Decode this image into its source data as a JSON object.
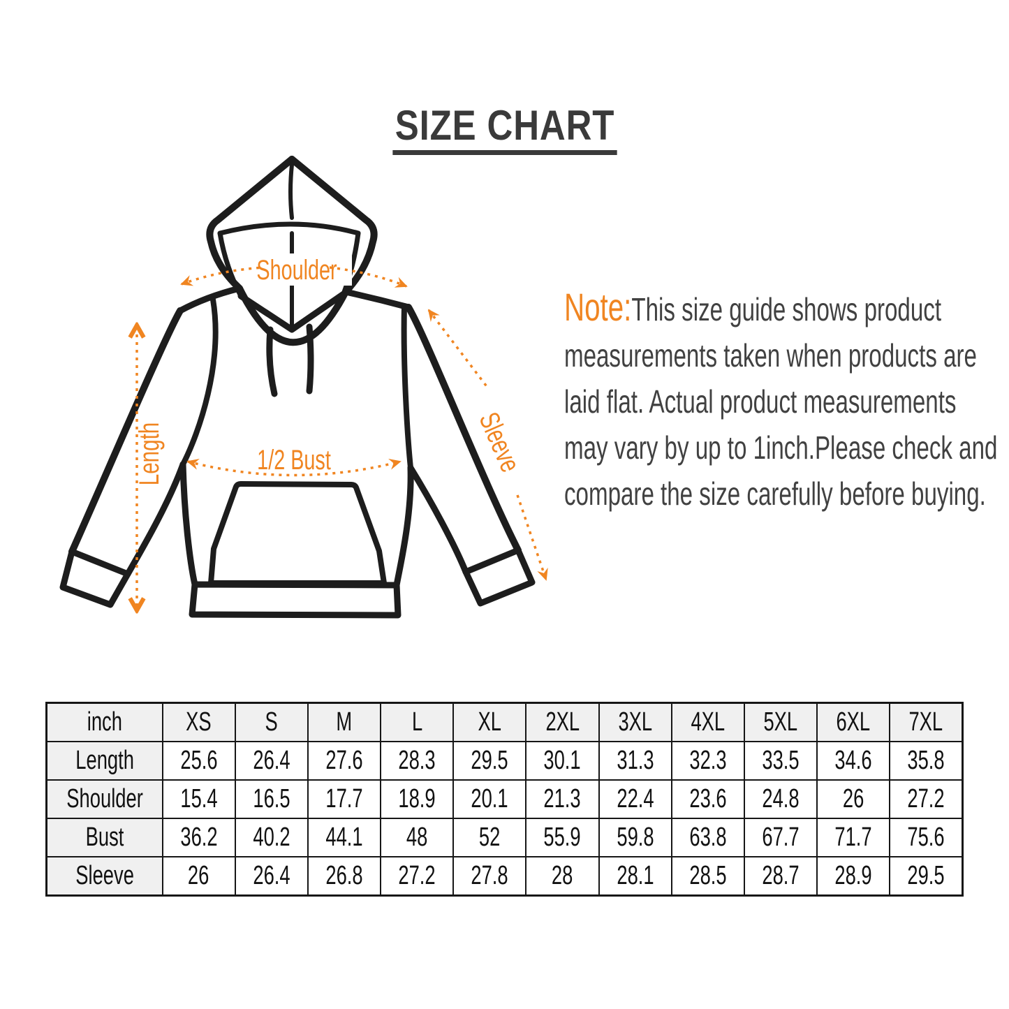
{
  "title": "SIZE CHART",
  "note": {
    "label": "Note:",
    "lines": [
      "This size guide shows product",
      "measurements taken when products are",
      "laid flat. Actual product measurements",
      "may vary by up to 1inch.Please check and",
      "compare the size carefully before buying."
    ]
  },
  "diagram": {
    "labels": {
      "shoulder": "Shoulder",
      "length": "Length",
      "bust": "1/2 Bust",
      "sleeve": "Sleeve"
    }
  },
  "table": {
    "unit_label": "inch",
    "sizes": [
      "XS",
      "S",
      "M",
      "L",
      "XL",
      "2XL",
      "3XL",
      "4XL",
      "5XL",
      "6XL",
      "7XL"
    ],
    "rows": [
      {
        "label": "Length",
        "values": [
          25.6,
          26.4,
          27.6,
          28.3,
          29.5,
          30.1,
          31.3,
          32.3,
          33.5,
          34.6,
          35.8
        ]
      },
      {
        "label": "Shoulder",
        "values": [
          15.4,
          16.5,
          17.7,
          18.9,
          20.1,
          21.3,
          22.4,
          23.6,
          24.8,
          26,
          27.2
        ]
      },
      {
        "label": "Bust",
        "values": [
          36.2,
          40.2,
          44.1,
          48,
          52,
          55.9,
          59.8,
          63.8,
          67.7,
          71.7,
          75.6
        ]
      },
      {
        "label": "Sleeve",
        "values": [
          26,
          26.4,
          26.8,
          27.2,
          27.8,
          28,
          28.1,
          28.5,
          28.7,
          28.9,
          29.5
        ]
      }
    ]
  },
  "colors": {
    "accent_orange": "#f08521",
    "line_black": "#1d1d1d",
    "note_text": "#414141",
    "title_text": "#3a3a3a",
    "table_header_bg": "#f0f0f0",
    "table_border": "#161616"
  }
}
